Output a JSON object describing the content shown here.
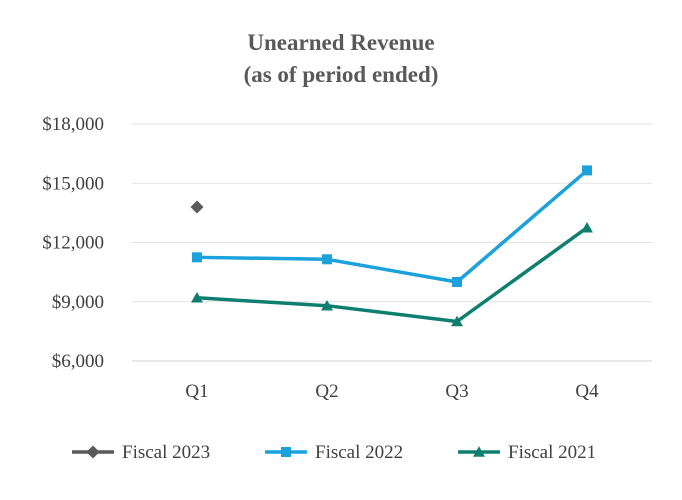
{
  "chart_data": {
    "type": "line",
    "title": "Unearned Revenue",
    "subtitle": "(as of period ended)",
    "categories": [
      "Q1",
      "Q2",
      "Q3",
      "Q4"
    ],
    "yticks": [
      "$6,000",
      "$9,000",
      "$12,000",
      "$15,000",
      "$18,000"
    ],
    "ylim": [
      6000,
      18000
    ],
    "ystep": 3000,
    "grid": true,
    "legend_position": "bottom",
    "series": [
      {
        "name": "Fiscal 2023",
        "values": [
          13800,
          null,
          null,
          null
        ],
        "color": "#595959",
        "marker": "diamond",
        "line": false
      },
      {
        "name": "Fiscal 2022",
        "values": [
          11250,
          11150,
          10000,
          15650
        ],
        "color": "#1BA1DB",
        "marker": "square",
        "line": true
      },
      {
        "name": "Fiscal 2021",
        "values": [
          9200,
          8800,
          8000,
          12750
        ],
        "color": "#0E7F6E",
        "marker": "triangle",
        "line": true
      }
    ]
  }
}
